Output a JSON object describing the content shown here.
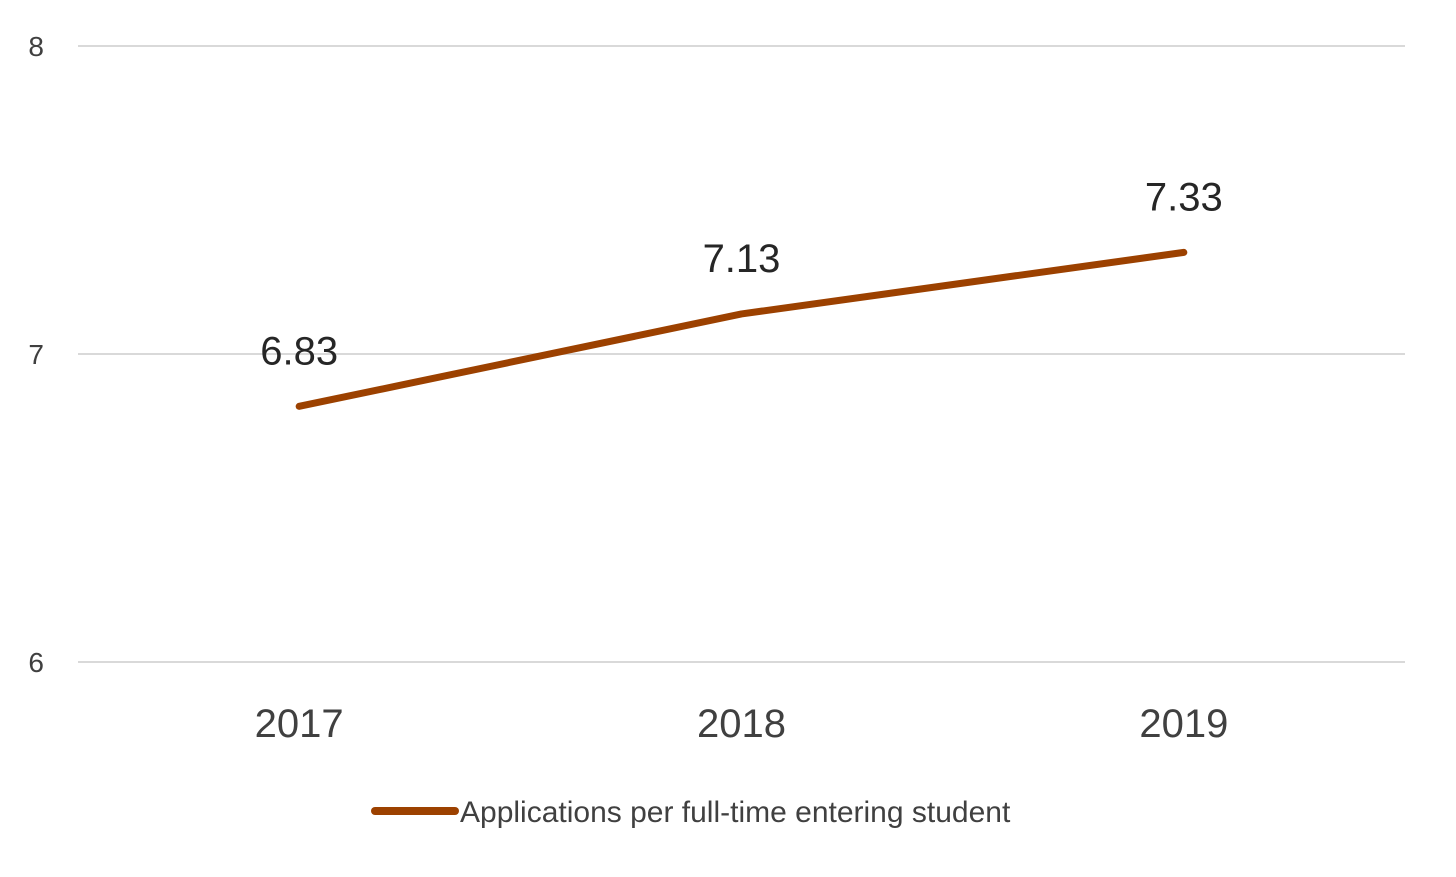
{
  "chart_data": {
    "type": "line",
    "categories": [
      "2017",
      "2018",
      "2019"
    ],
    "series": [
      {
        "name": "Applications per full-time entering student",
        "values": [
          6.83,
          7.13,
          7.33
        ],
        "color": "#9C4100"
      }
    ],
    "data_labels": [
      "6.83",
      "7.13",
      "7.33"
    ],
    "ylim": [
      6,
      8
    ],
    "yticks": [
      6,
      7,
      8
    ],
    "grid": true,
    "legend_position": "bottom"
  }
}
